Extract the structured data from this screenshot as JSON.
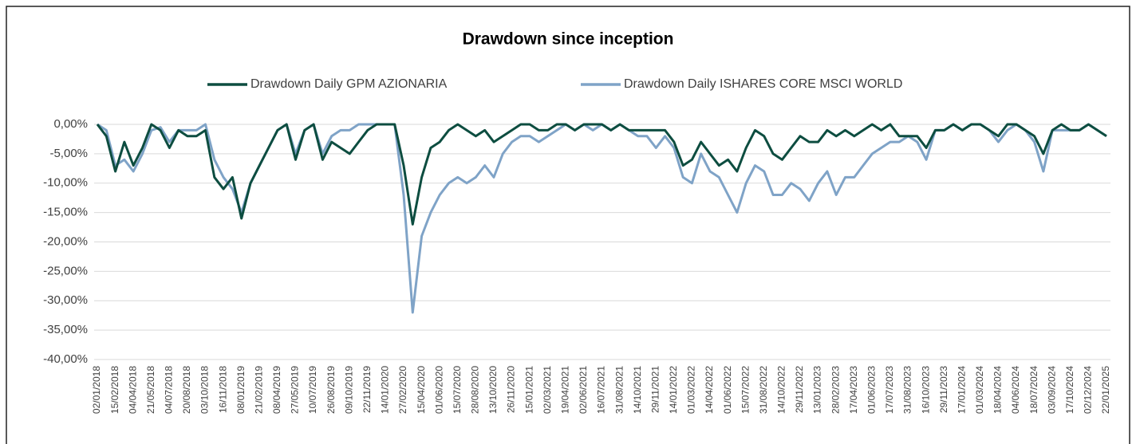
{
  "chart_data": {
    "type": "line",
    "title": "Drawdown since inception",
    "categories": [
      "02/01/2018",
      null,
      "15/02/2018",
      null,
      "04/04/2018",
      null,
      "21/05/2018",
      null,
      "04/07/2018",
      null,
      "20/08/2018",
      null,
      "03/10/2018",
      null,
      "16/11/2018",
      null,
      "08/01/2019",
      null,
      "21/02/2019",
      null,
      "08/04/2019",
      null,
      "27/05/2019",
      null,
      "10/07/2019",
      null,
      "26/08/2019",
      null,
      "09/10/2019",
      null,
      "22/11/2019",
      null,
      "14/01/2020",
      null,
      "27/02/2020",
      null,
      "15/04/2020",
      null,
      "01/06/2020",
      null,
      "15/07/2020",
      null,
      "28/08/2020",
      null,
      "13/10/2020",
      null,
      "26/11/2020",
      null,
      "15/01/2021",
      null,
      "02/03/2021",
      null,
      "19/04/2021",
      null,
      "02/06/2021",
      null,
      "16/07/2021",
      null,
      "31/08/2021",
      null,
      "14/10/2021",
      null,
      "29/11/2021",
      null,
      "14/01/2022",
      null,
      "01/03/2022",
      null,
      "14/04/2022",
      null,
      "01/06/2022",
      null,
      "15/07/2022",
      null,
      "31/08/2022",
      null,
      "14/10/2022",
      null,
      "29/11/2022",
      null,
      "13/01/2023",
      null,
      "28/02/2023",
      null,
      "17/04/2023",
      null,
      "01/06/2023",
      null,
      "17/07/2023",
      null,
      "31/08/2023",
      null,
      "16/10/2023",
      null,
      "29/11/2023",
      null,
      "17/01/2024",
      null,
      "01/03/2024",
      null,
      "18/04/2024",
      null,
      "04/06/2024",
      null,
      "18/07/2024",
      null,
      "03/09/2024",
      null,
      "17/10/2024",
      null,
      "02/12/2024",
      null,
      "22/01/2025"
    ],
    "series": [
      {
        "name": "Drawdown Daily GPM AZIONARIA",
        "color": "#0d4d40",
        "values": [
          0,
          -2,
          -8,
          -3,
          -7,
          -4,
          0,
          -1,
          -4,
          -1,
          -2,
          -2,
          -1,
          -9,
          -11,
          -9,
          -16,
          -10,
          -7,
          -4,
          -1,
          0,
          -6,
          -1,
          0,
          -6,
          -3,
          -4,
          -5,
          -3,
          -1,
          0,
          0,
          0,
          -7,
          -17,
          -9,
          -4,
          -3,
          -1,
          0,
          -1,
          -2,
          -1,
          -3,
          -2,
          -1,
          0,
          0,
          -1,
          -1,
          0,
          0,
          -1,
          0,
          0,
          0,
          -1,
          0,
          -1,
          -1,
          -1,
          -1,
          -1,
          -3,
          -7,
          -6,
          -3,
          -5,
          -7,
          -6,
          -8,
          -4,
          -1,
          -2,
          -5,
          -6,
          -4,
          -2,
          -3,
          -3,
          -1,
          -2,
          -1,
          -2,
          -1,
          0,
          -1,
          0,
          -2,
          -2,
          -2,
          -4,
          -1,
          -1,
          0,
          -1,
          0,
          0,
          -1,
          -2,
          0,
          0,
          -1,
          -2,
          -5,
          -1,
          0,
          -1,
          -1,
          0,
          -1,
          -2
        ]
      },
      {
        "name": "Drawdown Daily ISHARES CORE MSCI WORLD",
        "color": "#7fa3c7",
        "values": [
          0,
          -1,
          -7,
          -6,
          -8,
          -5,
          -1,
          -0.5,
          -3,
          -1,
          -1,
          -1,
          0,
          -6,
          -9,
          -11,
          -15,
          -10,
          -7,
          -4,
          -1,
          0,
          -5,
          -1,
          0,
          -5,
          -2,
          -1,
          -1,
          0,
          0,
          0,
          0,
          0,
          -12,
          -32,
          -19,
          -15,
          -12,
          -10,
          -9,
          -10,
          -9,
          -7,
          -9,
          -5,
          -3,
          -2,
          -2,
          -3,
          -2,
          -1,
          0,
          -1,
          0,
          -1,
          0,
          -1,
          0,
          -1,
          -2,
          -2,
          -4,
          -2,
          -4,
          -9,
          -10,
          -5,
          -8,
          -9,
          -12,
          -15,
          -10,
          -7,
          -8,
          -12,
          -12,
          -10,
          -11,
          -13,
          -10,
          -8,
          -12,
          -9,
          -9,
          -7,
          -5,
          -4,
          -3,
          -3,
          -2,
          -3,
          -6,
          -1,
          -1,
          0,
          -1,
          0,
          0,
          -1,
          -3,
          -1,
          0,
          -1,
          -3,
          -8,
          -1,
          -1,
          -1,
          -1,
          0,
          -1,
          -2
        ]
      }
    ],
    "ylim": [
      -40,
      0
    ],
    "yticks": [
      {
        "value": 0,
        "label": "0,00%"
      },
      {
        "value": -5,
        "label": "-5,00%"
      },
      {
        "value": -10,
        "label": "-10,00%"
      },
      {
        "value": -15,
        "label": "-15,00%"
      },
      {
        "value": -20,
        "label": "-20,00%"
      },
      {
        "value": -25,
        "label": "-25,00%"
      },
      {
        "value": -30,
        "label": "-30,00%"
      },
      {
        "value": -35,
        "label": "-35,00%"
      },
      {
        "value": -40,
        "label": "-40,00%"
      }
    ],
    "grid": true,
    "legend": "top"
  }
}
